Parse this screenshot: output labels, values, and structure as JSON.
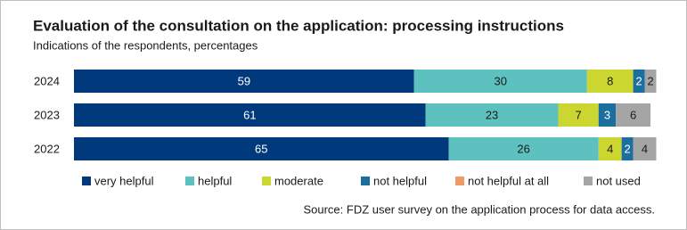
{
  "chart_data": {
    "type": "stacked-bar-horizontal",
    "title": "Evaluation of the consultation on the application: processing instructions",
    "subtitle": "Indications of the respondents, percentages",
    "source": "Source: FDZ user survey on the application process for data access.",
    "categories": [
      "2024",
      "2023",
      "2022"
    ],
    "series": [
      {
        "name": "very helpful",
        "color": "#003a7d",
        "values": [
          59,
          61,
          65
        ]
      },
      {
        "name": "helpful",
        "color": "#5cc1bf",
        "values": [
          30,
          23,
          26
        ]
      },
      {
        "name": "moderate",
        "color": "#cbd631",
        "values": [
          8,
          7,
          4
        ]
      },
      {
        "name": "not helpful",
        "color": "#1b6f9e",
        "values": [
          2,
          3,
          2
        ]
      },
      {
        "name": "not helpful at all",
        "color": "#ee9b6a",
        "values": [
          0,
          0,
          0
        ]
      },
      {
        "name": "not used",
        "color": "#a5a5a5",
        "values": [
          2,
          6,
          4
        ]
      }
    ]
  }
}
